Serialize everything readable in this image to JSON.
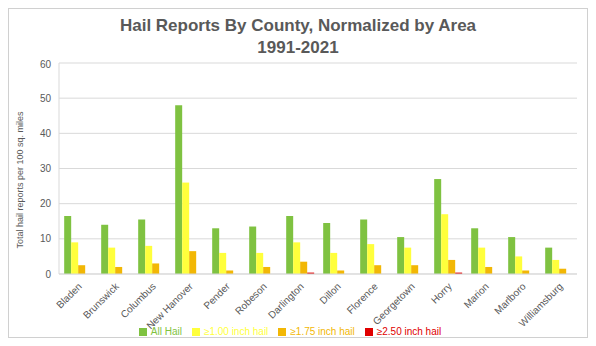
{
  "chart_data": {
    "type": "bar",
    "title": "Hail Reports By County, Normalized by Area\n1991-2021",
    "y_label": "Total hail reports per 100 sq. miles",
    "categories": [
      "Bladen",
      "Brunswick",
      "Columbus",
      "New Hanover",
      "Pender",
      "Robeson",
      "Darlington",
      "Dillon",
      "Florence",
      "Georgetown",
      "Horry",
      "Marion",
      "Marlboro",
      "Williamsburg"
    ],
    "series": [
      {
        "name": "All Hail",
        "color": "#7fc241",
        "values": [
          16.5,
          14,
          15.5,
          48,
          13,
          13.5,
          16.5,
          14.5,
          15.5,
          10.5,
          27,
          13,
          10.5,
          7.5
        ]
      },
      {
        "name": "≥1.00 inch hail",
        "color": "#ffff3c",
        "values": [
          9,
          7.5,
          8,
          26,
          6,
          6,
          9,
          6,
          8.5,
          7.5,
          17,
          7.5,
          5,
          4
        ]
      },
      {
        "name": "≥1.75 inch hail",
        "color": "#f2b705",
        "values": [
          2.5,
          2,
          3,
          6.5,
          1,
          2,
          3.5,
          1,
          2.5,
          2.5,
          4,
          2,
          1,
          1.5
        ]
      },
      {
        "name": "≥2.50 inch hail",
        "color": "#e00000",
        "values": [
          0,
          0,
          0,
          0,
          0,
          0,
          0.4,
          0,
          0,
          0,
          0.4,
          0,
          0,
          0
        ]
      }
    ],
    "ylim": [
      0,
      60
    ],
    "yticks": [
      0,
      10,
      20,
      30,
      40,
      50,
      60
    ],
    "grid": true,
    "legend": "bottom"
  }
}
